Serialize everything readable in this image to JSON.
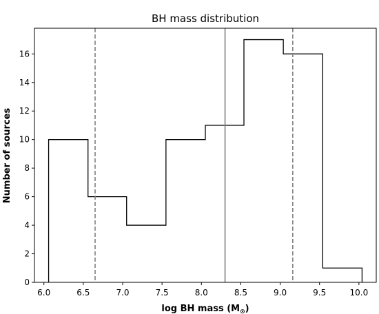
{
  "chart_data": {
    "type": "histogram",
    "title": "BH mass distribution",
    "xlabel": "log BH mass (M",
    "xlabel_subscript": "⊙",
    "xlabel_suffix": ")",
    "ylabel": "Number of sources",
    "xlim": [
      5.88,
      10.22
    ],
    "ylim": [
      0,
      17.8
    ],
    "bins": [
      {
        "x0": 6.06,
        "x1": 6.56,
        "count": 10
      },
      {
        "x0": 6.56,
        "x1": 7.05,
        "count": 6
      },
      {
        "x0": 7.05,
        "x1": 7.55,
        "count": 4
      },
      {
        "x0": 7.55,
        "x1": 8.05,
        "count": 10
      },
      {
        "x0": 8.05,
        "x1": 8.54,
        "count": 11
      },
      {
        "x0": 8.54,
        "x1": 9.04,
        "count": 17
      },
      {
        "x0": 9.04,
        "x1": 9.54,
        "count": 16
      },
      {
        "x0": 9.54,
        "x1": 10.04,
        "count": 1
      }
    ],
    "xticks": [
      "6.0",
      "6.5",
      "7.0",
      "7.5",
      "8.0",
      "8.5",
      "9.0",
      "9.5",
      "10.0"
    ],
    "yticks": [
      "0",
      "2",
      "4",
      "6",
      "8",
      "10",
      "12",
      "14",
      "16"
    ],
    "vlines": [
      {
        "x": 6.65,
        "style": "dashed",
        "color": "#7f7f7f"
      },
      {
        "x": 8.3,
        "style": "solid",
        "color": "#7f7f7f"
      },
      {
        "x": 9.16,
        "style": "dashed",
        "color": "#7f7f7f"
      }
    ],
    "grid": false,
    "step_color": "#000000"
  }
}
